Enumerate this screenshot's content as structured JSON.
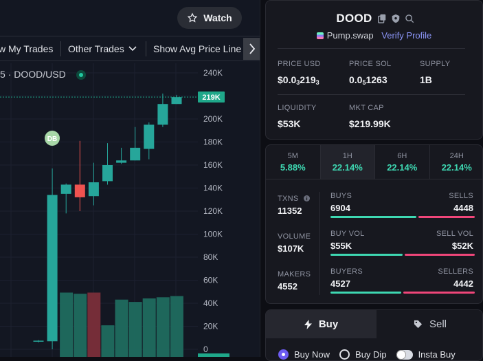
{
  "header": {
    "watch_label": "Watch"
  },
  "toolbar": {
    "items": [
      "w My Trades",
      "Other Trades",
      "Show Avg Price Line"
    ]
  },
  "chart": {
    "pair_label": "5 · DOOD/USD",
    "last_price_label": "219K",
    "marker_label": "DB",
    "colors": {
      "up": "#26a69a",
      "down": "#ef5350",
      "price_tag": "#1fa88a"
    }
  },
  "chart_data": {
    "type": "candlestick",
    "y_ticks": [
      "240K",
      "220K",
      "200K",
      "180K",
      "160K",
      "140K",
      "120K",
      "100K",
      "80K",
      "60K",
      "40K",
      "20K",
      "0"
    ],
    "ylim": [
      0,
      240000
    ],
    "candles": [
      {
        "o": 7000,
        "h": 8000,
        "l": 6000,
        "c": 7500
      },
      {
        "o": 7000,
        "h": 157000,
        "l": 0,
        "c": 134000
      },
      {
        "o": 135000,
        "h": 144000,
        "l": 118000,
        "c": 143000
      },
      {
        "o": 143000,
        "h": 181000,
        "l": 120000,
        "c": 132000
      },
      {
        "o": 133000,
        "h": 162000,
        "l": 125000,
        "c": 145000
      },
      {
        "o": 146000,
        "h": 179000,
        "l": 143000,
        "c": 160000
      },
      {
        "o": 162000,
        "h": 175000,
        "l": 161000,
        "c": 164000
      },
      {
        "o": 164000,
        "h": 193000,
        "l": 164000,
        "c": 175000
      },
      {
        "o": 174000,
        "h": 197000,
        "l": 165000,
        "c": 195000
      },
      {
        "o": 195000,
        "h": 222000,
        "l": 193000,
        "c": 213000
      },
      {
        "o": 213000,
        "h": 221000,
        "l": 213000,
        "c": 219000
      }
    ],
    "volumes": [
      0.0,
      0.55,
      0.54,
      0.55,
      0.27,
      0.49,
      0.47,
      0.5,
      0.51,
      0.52,
      0.0
    ],
    "last_price": 219000
  },
  "token": {
    "name": "DOOD",
    "dex": "Pump.swap",
    "verify_label": "Verify Profile",
    "stats": {
      "price_usd_label": "PRICE USD",
      "price_usd_pre": "$0.0",
      "price_usd_sub": "3",
      "price_usd_post": "219",
      "price_usd_sub2": "3",
      "price_sol_label": "PRICE SOL",
      "price_sol_pre": "0.0",
      "price_sol_sub": "5",
      "price_sol_post": "1263",
      "supply_label": "SUPPLY",
      "supply": "1B",
      "liquidity_label": "LIQUIDITY",
      "liquidity": "$53K",
      "mktcap_label": "MKT CAP",
      "mktcap": "$219.99K"
    }
  },
  "periods": [
    {
      "label": "5M",
      "value": "5.88%"
    },
    {
      "label": "1H",
      "value": "22.14%"
    },
    {
      "label": "6H",
      "value": "22.14%"
    },
    {
      "label": "24H",
      "value": "22.14%"
    }
  ],
  "txns": {
    "txns_label": "TXNS",
    "txns": "11352",
    "volume_label": "VOLUME",
    "volume": "$107K",
    "makers_label": "MAKERS",
    "makers": "4552",
    "buys_label": "BUYS",
    "buys": "6904",
    "sells_label": "SELLS",
    "sells": "4448",
    "buyvol_label": "BUY VOL",
    "buyvol": "$55K",
    "sellvol_label": "SELL VOL",
    "sellvol": "$52K",
    "buyers_label": "BUYERS",
    "buyers": "4527",
    "sellers_label": "SELLERS",
    "sellers": "4442",
    "ratios": {
      "buys": 0.608,
      "buyvol": 0.515,
      "buyers": 0.505
    }
  },
  "trade": {
    "buy_label": "Buy",
    "sell_label": "Sell",
    "modes": [
      "Buy Now",
      "Buy Dip",
      "Insta Buy"
    ]
  }
}
